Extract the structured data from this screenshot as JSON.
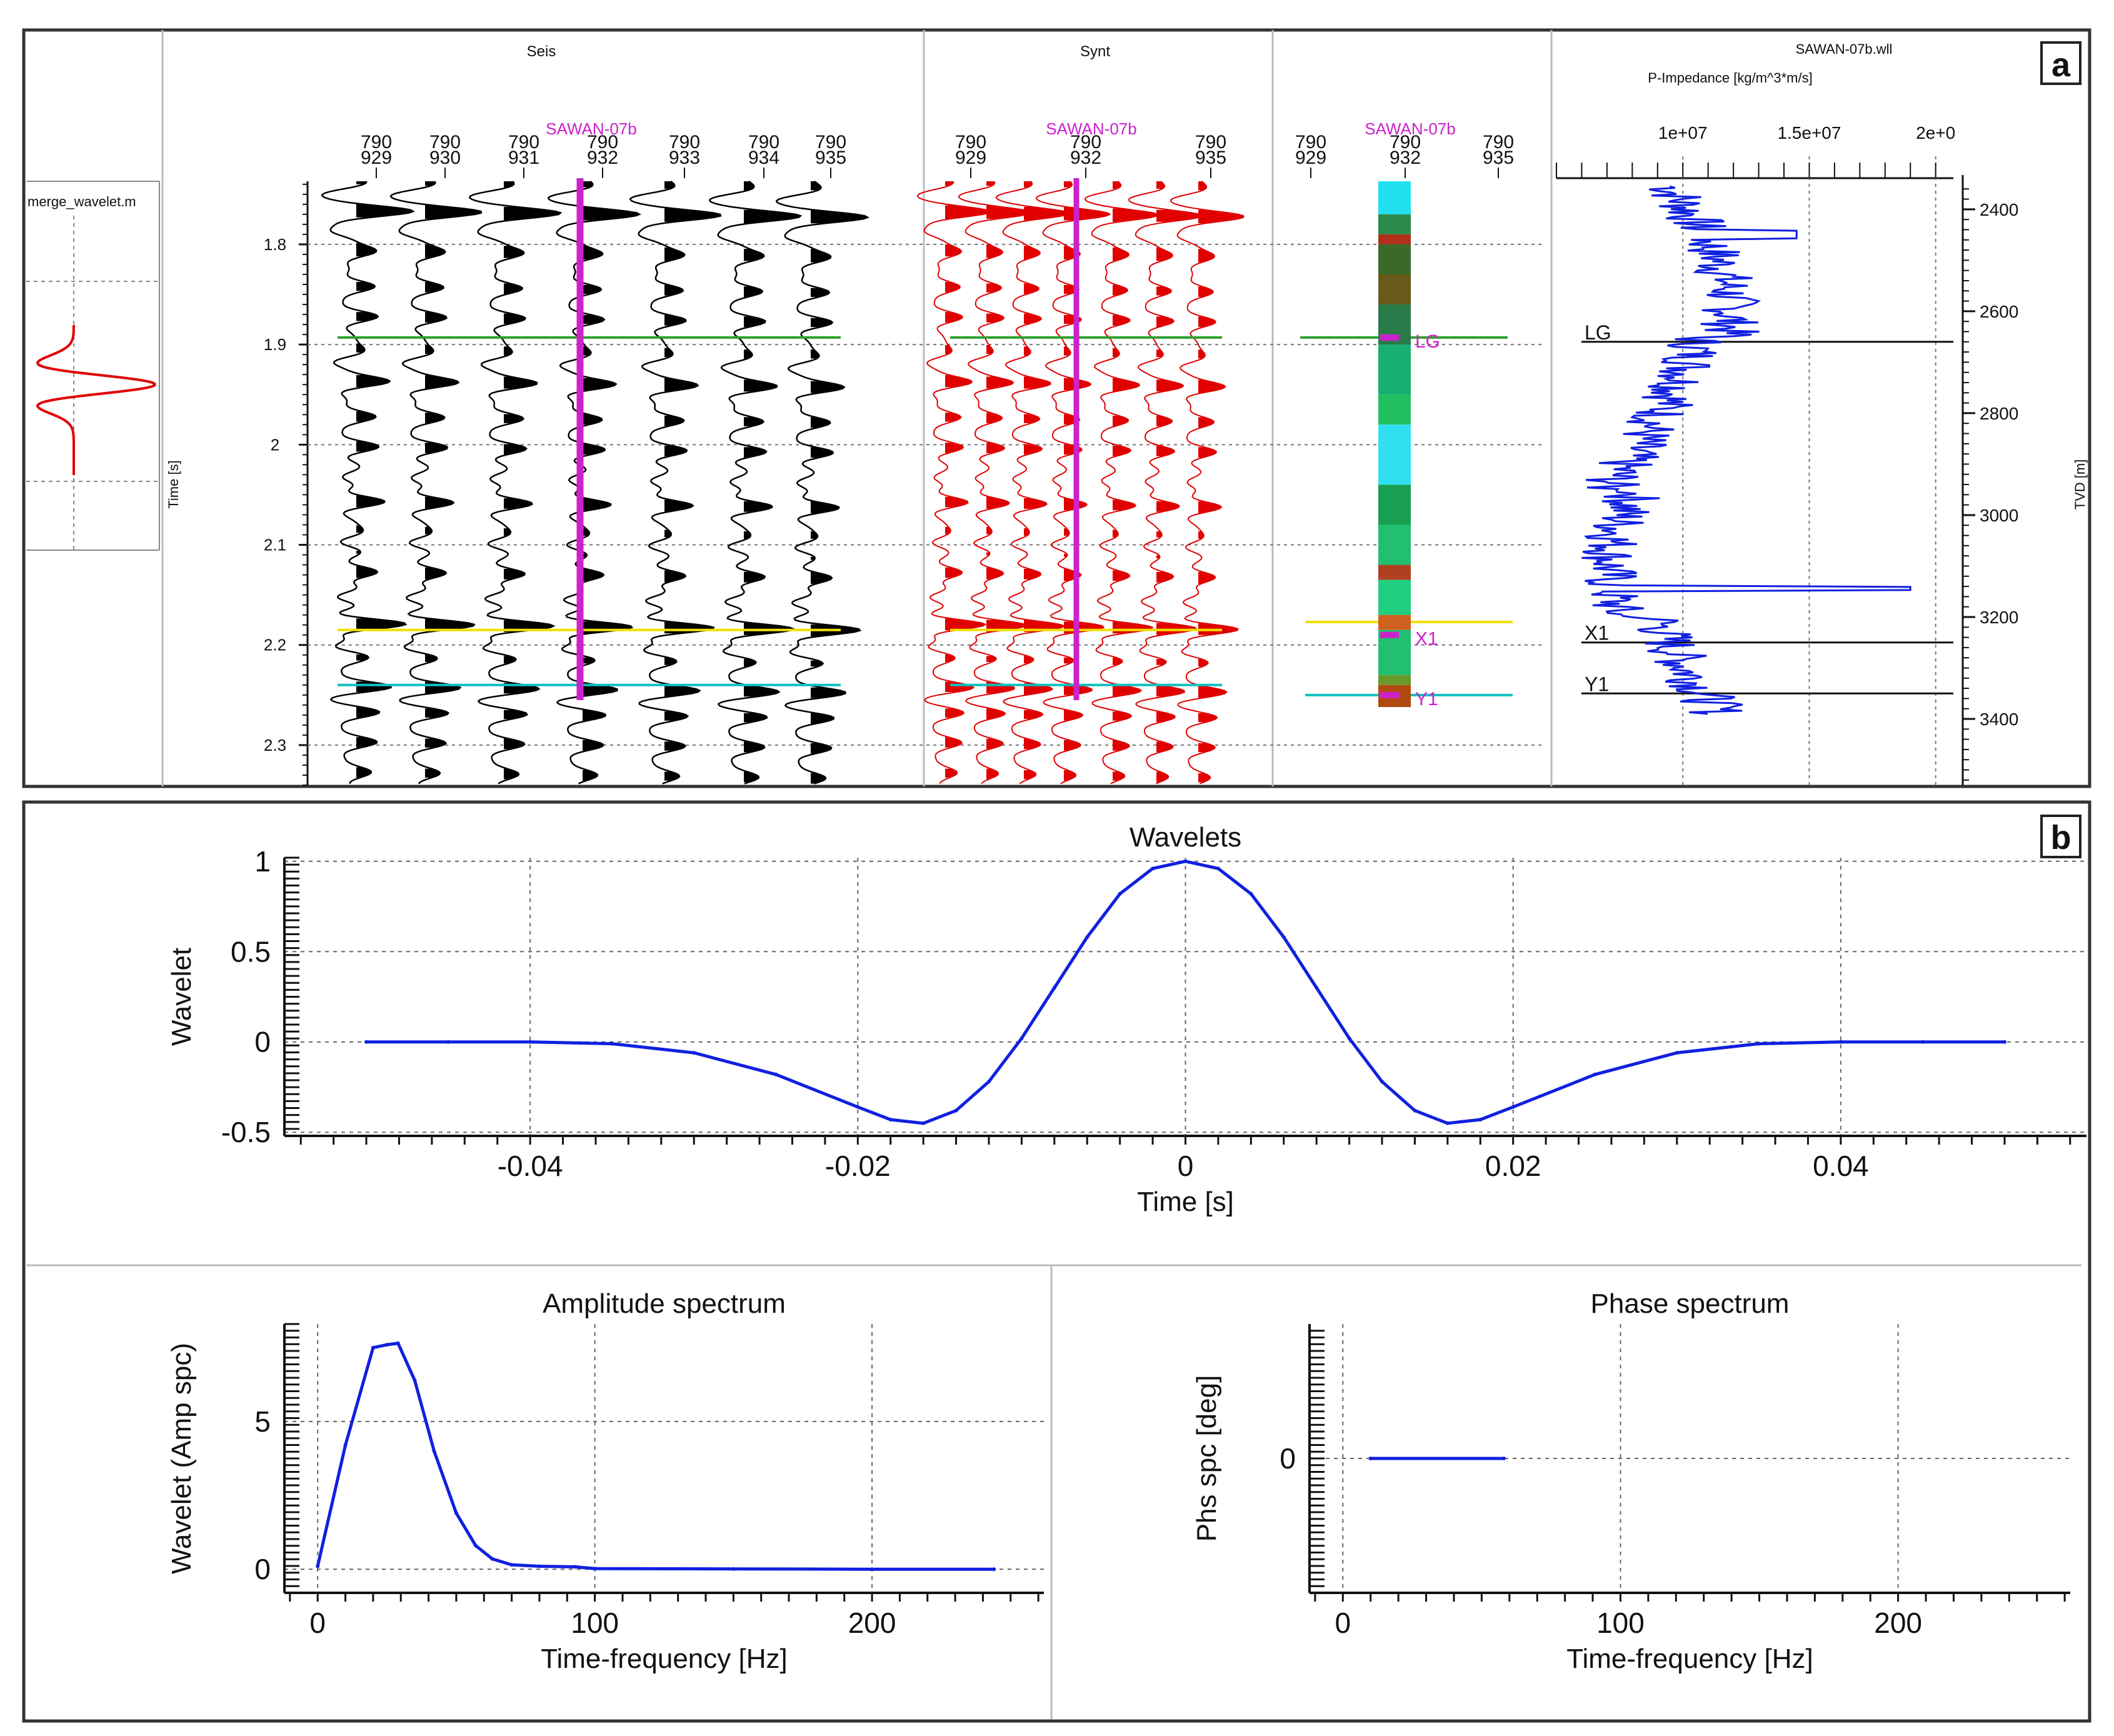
{
  "figure": {
    "panel_a_label": "a",
    "panel_b_label": "b",
    "colors": {
      "seismic": "#000000",
      "synthetic": "#e00000",
      "well": "#cc22cc",
      "horizon_lg": "#2ea02e",
      "horizon_x1": "#f0e000",
      "horizon_y1": "#10c0c0",
      "impedance": "#1020e0",
      "wavelet": "#1020e0",
      "grid": "#666666"
    }
  },
  "panel_a": {
    "wavelet_panel": {
      "title": "merge_wavelet.m"
    },
    "time_axis": {
      "label": "Time [s]",
      "ticks": [
        "1.8",
        "1.9",
        "2",
        "2.1",
        "2.2",
        "2.3"
      ],
      "range": [
        1.737,
        2.34
      ]
    },
    "seis": {
      "title": "Seis",
      "well_label": "SAWAN-07b",
      "inline": "790",
      "traces": [
        "929",
        "930",
        "931",
        "932",
        "933",
        "934",
        "935"
      ]
    },
    "synt": {
      "title": "Synt",
      "well_label": "SAWAN-07b",
      "inline": "790",
      "trace_labels": [
        "929",
        "932",
        "935"
      ]
    },
    "well_column": {
      "well_label": "SAWAN-07b",
      "inline": "790",
      "trace_labels": [
        "929",
        "932",
        "935"
      ],
      "markers": [
        "LG",
        "X1",
        "Y1"
      ]
    },
    "log": {
      "title": "SAWAN-07b.wll",
      "subtitle": "P-Impedance [kg/m^3*m/s]",
      "x_ticks": [
        "1e+07",
        "1.5e+07",
        "2e+0"
      ],
      "depth_axis_label": "TVD [m]",
      "depth_ticks": [
        "2400",
        "2600",
        "2800",
        "3000",
        "3200",
        "3400"
      ],
      "markers": [
        "LG",
        "X1",
        "Y1"
      ]
    },
    "horizons": [
      {
        "name": "LG",
        "time": 1.893
      },
      {
        "name": "X1",
        "time": 2.185
      },
      {
        "name": "Y1",
        "time": 2.24
      }
    ]
  },
  "chart_data": [
    {
      "type": "line",
      "title": "Wavelets",
      "xlabel": "Time [s]",
      "ylabel": "Wavelet",
      "xlim": [
        -0.055,
        0.055
      ],
      "ylim": [
        -0.52,
        1.02
      ],
      "x_ticks": [
        "-0.04",
        "-0.02",
        "0",
        "0.02",
        "0.04"
      ],
      "y_ticks": [
        "1",
        "0.5",
        "0",
        "-0.5"
      ],
      "series": [
        {
          "name": "Wavelet",
          "x": [
            -0.05,
            -0.045,
            -0.04,
            -0.035,
            -0.03,
            -0.025,
            -0.02,
            -0.018,
            -0.016,
            -0.014,
            -0.012,
            -0.01,
            -0.008,
            -0.006,
            -0.004,
            -0.002,
            0,
            0.002,
            0.004,
            0.006,
            0.008,
            0.01,
            0.012,
            0.014,
            0.016,
            0.018,
            0.02,
            0.025,
            0.03,
            0.035,
            0.04,
            0.045,
            0.05
          ],
          "y": [
            0,
            0,
            0,
            -0.01,
            -0.06,
            -0.18,
            -0.36,
            -0.43,
            -0.45,
            -0.38,
            -0.22,
            0.02,
            0.3,
            0.58,
            0.82,
            0.96,
            1,
            0.96,
            0.82,
            0.58,
            0.3,
            0.02,
            -0.22,
            -0.38,
            -0.45,
            -0.43,
            -0.36,
            -0.18,
            -0.06,
            -0.01,
            0,
            0,
            0
          ]
        }
      ]
    },
    {
      "type": "line",
      "title": "Amplitude spectrum",
      "xlabel": "Time-frequency [Hz]",
      "ylabel": "Wavelet (Amp spc)",
      "xlim": [
        -12,
        262
      ],
      "ylim": [
        -0.8,
        8.3
      ],
      "x_ticks": [
        "0",
        "100",
        "200"
      ],
      "y_ticks": [
        "0",
        "5"
      ],
      "series": [
        {
          "name": "Amplitude",
          "x": [
            0,
            10,
            20,
            25,
            29,
            35,
            42,
            50,
            57,
            63,
            70,
            80,
            93,
            100,
            150,
            200,
            244
          ],
          "y": [
            0.1,
            4.2,
            7.5,
            7.6,
            7.65,
            6.4,
            4.0,
            1.9,
            0.8,
            0.35,
            0.15,
            0.1,
            0.08,
            0.02,
            0.01,
            0.0,
            0.0
          ]
        }
      ]
    },
    {
      "type": "line",
      "title": "Phase spectrum",
      "xlabel": "Time-frequency [Hz]",
      "ylabel": "Phs spc [deg]",
      "xlim": [
        -12,
        262
      ],
      "ylim": [
        -1,
        1
      ],
      "x_ticks": [
        "0",
        "100",
        "200"
      ],
      "y_ticks": [
        "0"
      ],
      "series": [
        {
          "name": "Phase",
          "x": [
            10,
            58
          ],
          "y": [
            0,
            0
          ]
        }
      ]
    }
  ]
}
